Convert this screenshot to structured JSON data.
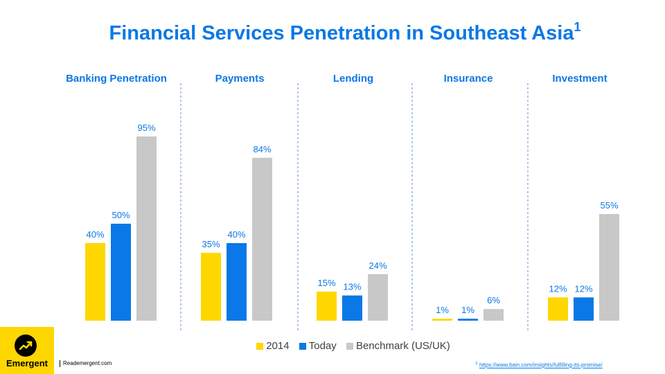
{
  "title": "Financial Services Penetration in Southeast Asia",
  "title_sup": "1",
  "colors": {
    "2014": "#ffd700",
    "today": "#0a78e6",
    "benchmark": "#c8c8c8",
    "title": "#0a78e6"
  },
  "chart_data": {
    "type": "bar",
    "categories": [
      "Banking Penetration",
      "Payments",
      "Lending",
      "Insurance",
      "Investment"
    ],
    "series": [
      {
        "name": "2014",
        "values": [
          40,
          35,
          15,
          1,
          12
        ]
      },
      {
        "name": "Today",
        "values": [
          50,
          40,
          13,
          1,
          12
        ]
      },
      {
        "name": "Benchmark (US/UK)",
        "values": [
          95,
          84,
          24,
          6,
          55
        ]
      }
    ],
    "unit": "%",
    "ylim": [
      0,
      100
    ],
    "legend": "bottom"
  },
  "logo": {
    "text": "Emergent"
  },
  "site": "Reademergent.com",
  "footnote": {
    "mark": "1",
    "text": "https://www.bain.com/insights/fulfilling-its-promise/"
  }
}
